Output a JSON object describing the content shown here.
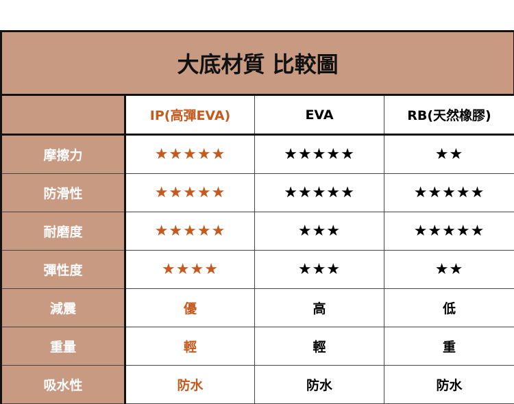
{
  "title": "大底材質 比較圖",
  "columns": [
    "",
    "IP(高彈EVA)",
    "EVA",
    "RB(天然橡膠)"
  ],
  "rows": [
    {
      "label": "摩擦力",
      "values": [
        "★★★★★",
        "★★★★★",
        "★★"
      ]
    },
    {
      "label": "防滑性",
      "values": [
        "★★★★★",
        "★★★★★",
        "★★★★★"
      ]
    },
    {
      "label": "耐磨度",
      "values": [
        "★★★★★",
        "★★★",
        "★★★★★"
      ]
    },
    {
      "label": "彈性度",
      "values": [
        "★★★★",
        "★★★",
        "★★"
      ]
    },
    {
      "label": "減震",
      "values": [
        "優",
        "高",
        "低"
      ]
    },
    {
      "label": "重量",
      "values": [
        "輕",
        "輕",
        "重"
      ]
    },
    {
      "label": "吸水性",
      "values": [
        "防水",
        "防水",
        "防水"
      ]
    }
  ],
  "colors": {
    "label_bg": "#c89a82",
    "highlight": "#c55a1e"
  }
}
